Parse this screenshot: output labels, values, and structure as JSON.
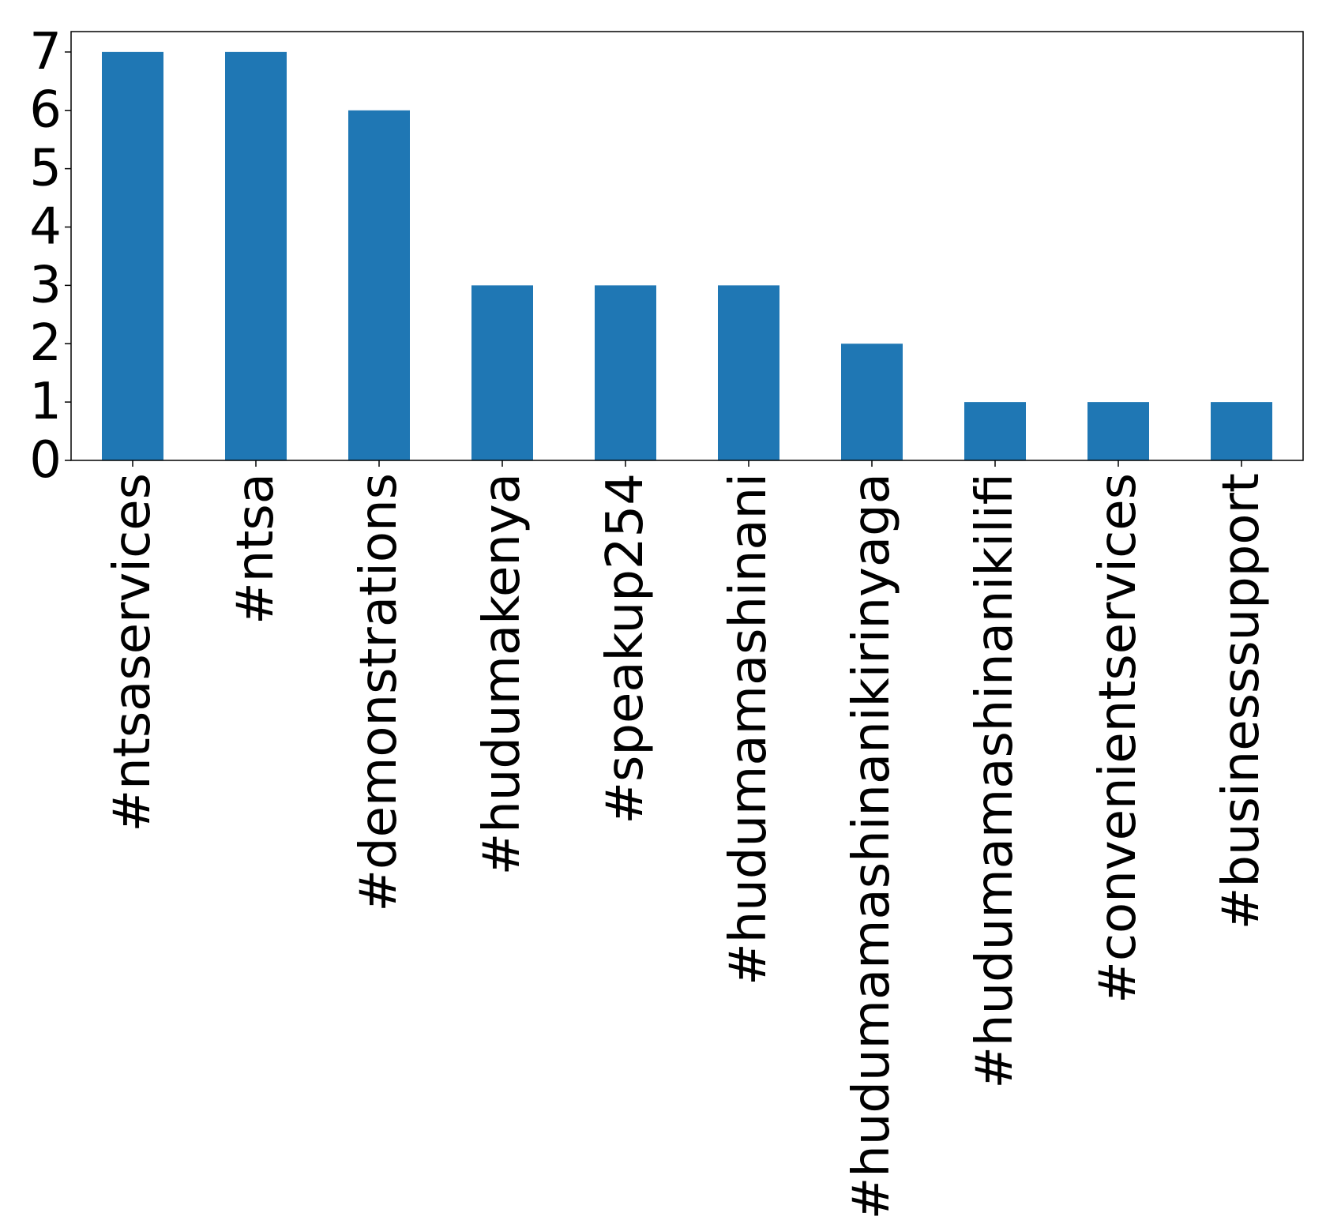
{
  "chart_data": {
    "type": "bar",
    "title": "",
    "xlabel": "",
    "ylabel": "",
    "categories": [
      "#ntsaservices",
      "#ntsa",
      "#demonstrations",
      "#hudumakenya",
      "#speakup254",
      "#hudumamashinani",
      "#hudumamashinanikirinyaga",
      "#hudumamashinanikilifi",
      "#convenientservices",
      "#businesssupport"
    ],
    "values": [
      7,
      7,
      6,
      3,
      3,
      3,
      2,
      1,
      1,
      1
    ],
    "ylim": [
      0,
      7.35
    ],
    "yticks": [
      0,
      1,
      2,
      3,
      4,
      5,
      6,
      7
    ],
    "grid": false,
    "legend": "none",
    "colors": {
      "bar": "#1f77b4",
      "axis": "#000000"
    }
  }
}
